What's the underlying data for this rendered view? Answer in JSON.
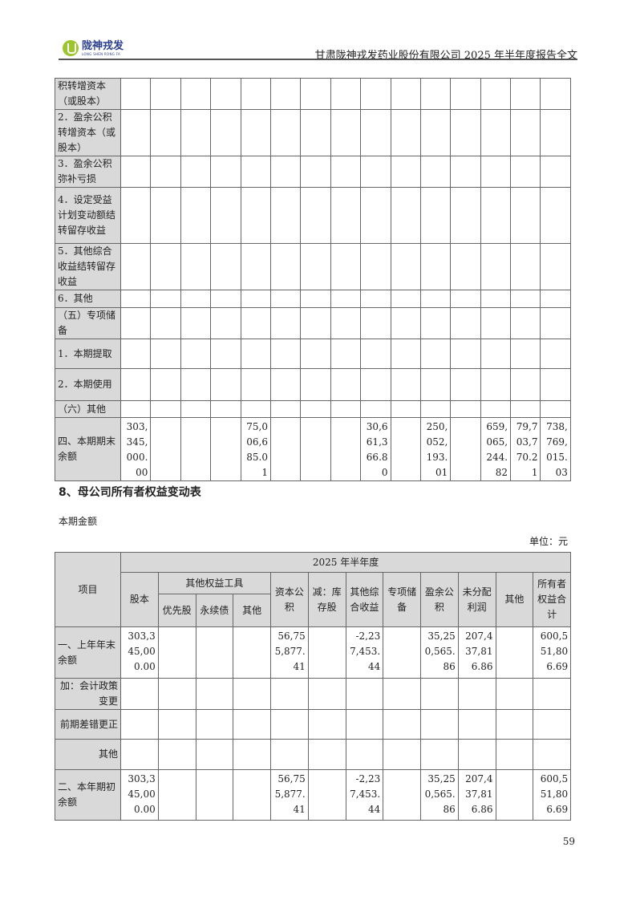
{
  "header": {
    "logo_cn": "陇神戎发",
    "logo_en": "LONG SHEN RONG FA",
    "title": "甘肃陇神戎发药业股份有限公司 2025 年半年度报告全文"
  },
  "table1": {
    "rows": [
      {
        "label": "积转增资本（或股本）",
        "values": []
      },
      {
        "label": "2．盈余公积转增资本（或股本）",
        "values": []
      },
      {
        "label": "3．盈余公积弥补亏损",
        "values": []
      },
      {
        "label": "4．设定受益计划变动额结转留存收益",
        "values": []
      },
      {
        "label": "5．其他综合收益结转留存收益",
        "values": []
      },
      {
        "label": "6．其他",
        "values": []
      },
      {
        "label": "（五）专项储备",
        "values": []
      },
      {
        "label": "1．本期提取",
        "values": []
      },
      {
        "label": "2．本期使用",
        "values": []
      },
      {
        "label": "（六）其他",
        "values": []
      },
      {
        "label": "四、本期期末余额",
        "values": [
          "303,345,000.00",
          "",
          "",
          "",
          "75,006,685.01",
          "",
          "",
          "",
          "30,661,366.80",
          "",
          "250,052,193.01",
          "",
          "659,065,244.82",
          "79,703,770.21",
          "738,769,015.03"
        ]
      }
    ]
  },
  "section_title": "8、母公司所有者权益变动表",
  "subtitle": "本期金额",
  "unit": "单位：元",
  "table2": {
    "period": "2025 年半年度",
    "item_header": "项目",
    "headers": {
      "share_capital": "股本",
      "other_equity_tools": "其他权益工具",
      "preferred": "优先股",
      "perpetual": "永续债",
      "other_tool": "其他",
      "capital_reserve": "资本公积",
      "treasury": "减：库存股",
      "oci": "其他综合收益",
      "special_reserve": "专项储备",
      "surplus_reserve": "盈余公积",
      "undistributed": "未分配利润",
      "other": "其他",
      "total": "所有者权益合计"
    },
    "rows": [
      {
        "label": "一、上年年末余额",
        "values": [
          "303,345,000.00",
          "",
          "",
          "",
          "56,755,877.41",
          "",
          "-2,237,453.44",
          "",
          "35,250,565.86",
          "207,437,816.86",
          "",
          "600,551,806.69"
        ]
      },
      {
        "label": "加：会计政策变更",
        "values": []
      },
      {
        "label": "前期差错更正",
        "values": []
      },
      {
        "label": "其他",
        "values": []
      },
      {
        "label": "二、本年期初余额",
        "values": [
          "303,345,000.00",
          "",
          "",
          "",
          "56,755,877.41",
          "",
          "-2,237,453.44",
          "",
          "35,250,565.86",
          "207,437,816.86",
          "",
          "600,551,806.69"
        ]
      }
    ]
  },
  "page_number": "59"
}
